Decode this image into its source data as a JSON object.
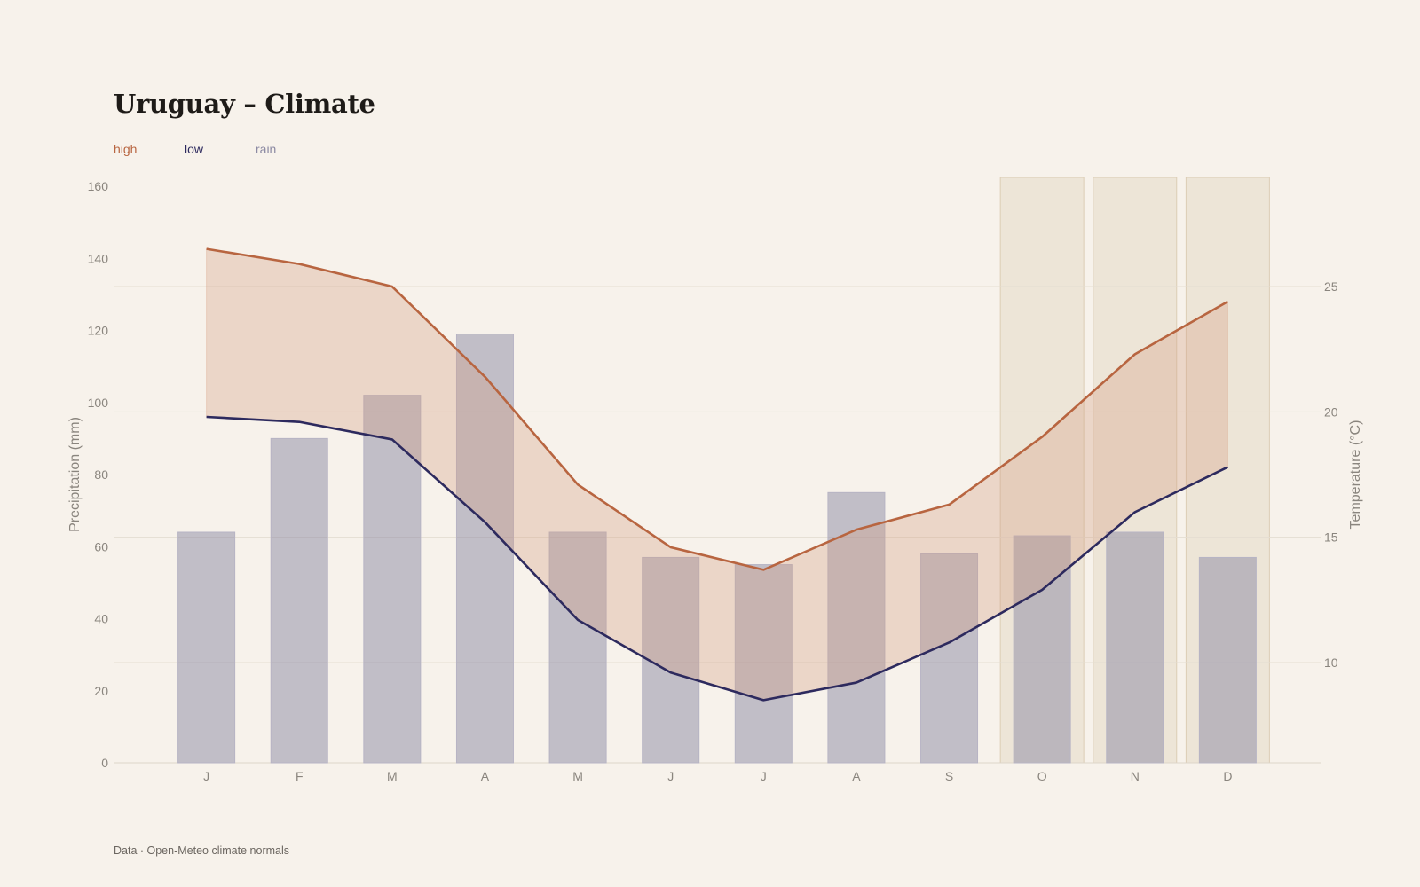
{
  "title": "Uruguay – Climate",
  "source": "Data · Open-Meteo climate normals",
  "legend": [
    {
      "label": "high",
      "color": "#b86540"
    },
    {
      "label": "low",
      "color": "#2d2a5e"
    },
    {
      "label": "rain",
      "color": "#8c8aa3"
    }
  ],
  "chart_data": {
    "type": "bar+line",
    "categories": [
      "J",
      "F",
      "M",
      "A",
      "M",
      "J",
      "J",
      "A",
      "S",
      "O",
      "N",
      "D"
    ],
    "rain": {
      "name": "rain",
      "axis": "left",
      "values": [
        64,
        90,
        102,
        119,
        64,
        57,
        55,
        75,
        58,
        63,
        64,
        57
      ],
      "color": "#8c8aa3"
    },
    "high": {
      "name": "high",
      "axis": "right",
      "values": [
        26.5,
        25.9,
        25.0,
        21.4,
        17.1,
        14.6,
        13.7,
        15.3,
        16.3,
        19.0,
        22.3,
        24.4
      ],
      "color": "#b86540"
    },
    "low": {
      "name": "low",
      "axis": "right",
      "values": [
        19.8,
        19.6,
        18.9,
        15.6,
        11.7,
        9.6,
        8.5,
        9.2,
        10.8,
        12.9,
        16.0,
        17.8
      ],
      "color": "#2d2a5e"
    },
    "highlight_months": [
      9,
      10,
      11
    ],
    "y_left": {
      "label": "Precipitation (mm)",
      "range": [
        0,
        160
      ],
      "ticks": [
        0,
        20,
        40,
        60,
        80,
        100,
        120,
        140,
        160
      ]
    },
    "y_right": {
      "label": "Temperature (°C)",
      "range": [
        6,
        29
      ],
      "ticks": [
        10,
        15,
        20,
        25
      ]
    },
    "grid": "horizontal lines at right-axis ticks",
    "legend_position": "top-left"
  }
}
